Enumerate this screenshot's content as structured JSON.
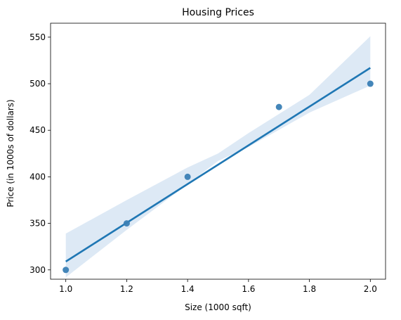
{
  "chart_data": {
    "type": "scatter",
    "title": "Housing Prices",
    "xlabel": "Size (1000 sqft)",
    "ylabel": "Price (in 1000s of dollars)",
    "xlim": [
      0.95,
      2.05
    ],
    "ylim": [
      290,
      565
    ],
    "xticks": [
      1.0,
      1.2,
      1.4,
      1.6,
      1.8,
      2.0
    ],
    "xtick_labels": [
      "1.0",
      "1.2",
      "1.4",
      "1.6",
      "1.8",
      "2.0"
    ],
    "yticks": [
      300,
      350,
      400,
      450,
      500,
      550
    ],
    "ytick_labels": [
      "300",
      "350",
      "400",
      "450",
      "500",
      "550"
    ],
    "grid": false,
    "points": [
      {
        "x": 1.0,
        "y": 300
      },
      {
        "x": 1.2,
        "y": 350
      },
      {
        "x": 1.4,
        "y": 400
      },
      {
        "x": 1.7,
        "y": 475
      },
      {
        "x": 2.0,
        "y": 500
      }
    ],
    "regression_line": {
      "x": [
        1.0,
        2.0
      ],
      "y": [
        309,
        517
      ]
    },
    "confidence_band": {
      "x": [
        1.0,
        1.2,
        1.4,
        1.5,
        1.6,
        1.8,
        2.0
      ],
      "lower": [
        292,
        343,
        392,
        417,
        432,
        469,
        498
      ],
      "upper": [
        339,
        375,
        410,
        425,
        447,
        488,
        551
      ]
    },
    "colors": {
      "points": "#3a7fb5",
      "line": "#1f77b4",
      "band": "#c6dbef"
    }
  }
}
